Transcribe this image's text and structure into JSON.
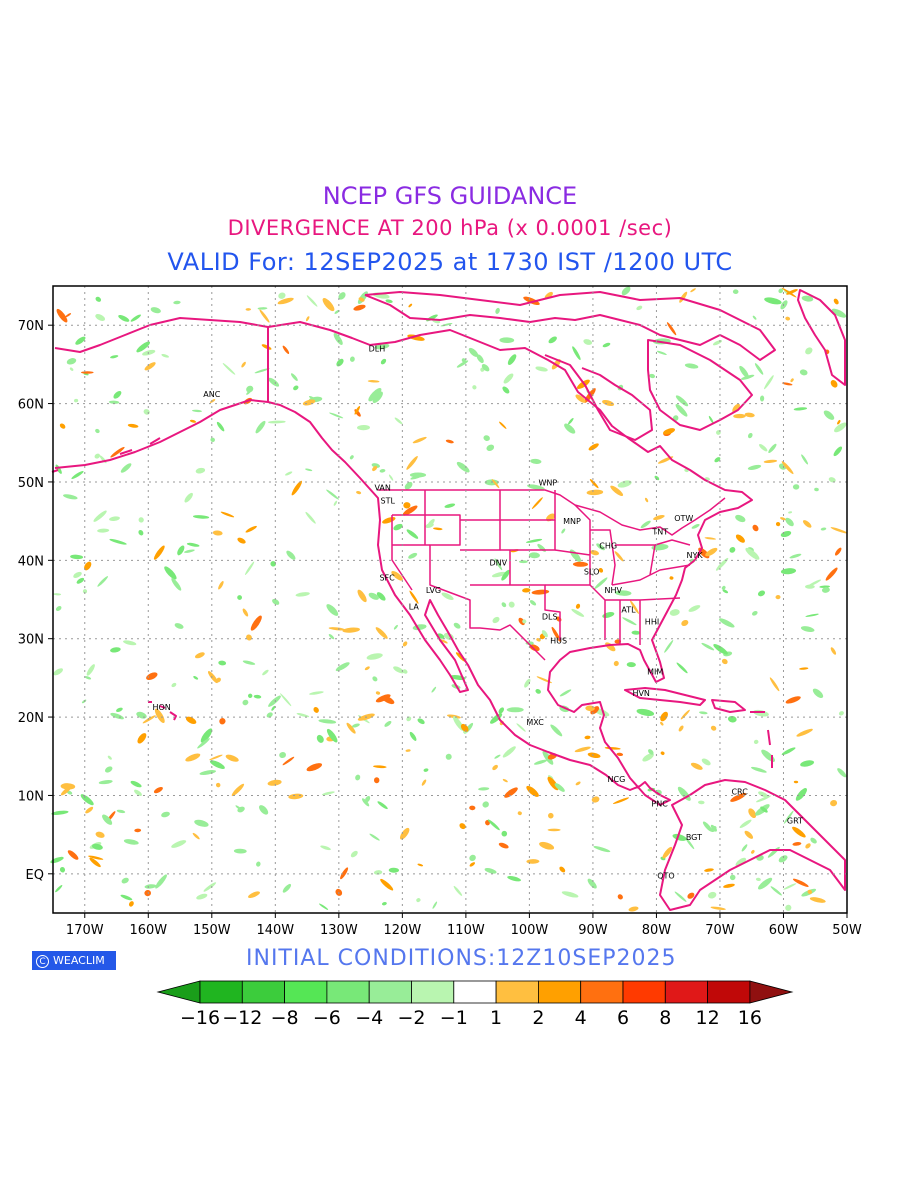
{
  "header": {
    "title": "NCEP GFS GUIDANCE",
    "subtitle": "DIVERGENCE AT 200 hPa (x 0.0001 /sec)",
    "valid": "VALID For: 12SEP2025 at 1730 IST /1200 UTC"
  },
  "initial_conditions": "INITIAL CONDITIONS:12Z10SEP2025",
  "logo_text": "WEACLIM",
  "map": {
    "extent": {
      "lon_min": -175,
      "lon_max": -50,
      "lat_min": -5,
      "lat_max": 75
    },
    "lat_labels": [
      {
        "lat": 70,
        "label": "70N"
      },
      {
        "lat": 60,
        "label": "60N"
      },
      {
        "lat": 50,
        "label": "50N"
      },
      {
        "lat": 40,
        "label": "40N"
      },
      {
        "lat": 30,
        "label": "30N"
      },
      {
        "lat": 20,
        "label": "20N"
      },
      {
        "lat": 10,
        "label": "10N"
      },
      {
        "lat": 0,
        "label": "EQ"
      }
    ],
    "lon_labels": [
      {
        "lon": -170,
        "label": "170W"
      },
      {
        "lon": -160,
        "label": "160W"
      },
      {
        "lon": -150,
        "label": "150W"
      },
      {
        "lon": -140,
        "label": "140W"
      },
      {
        "lon": -130,
        "label": "130W"
      },
      {
        "lon": -120,
        "label": "120W"
      },
      {
        "lon": -110,
        "label": "110W"
      },
      {
        "lon": -100,
        "label": "100W"
      },
      {
        "lon": -90,
        "label": "90W"
      },
      {
        "lon": -80,
        "label": "80W"
      },
      {
        "lon": -70,
        "label": "70W"
      },
      {
        "lon": -60,
        "label": "60W"
      },
      {
        "lon": -50,
        "label": "50W"
      }
    ],
    "grid": "dotted",
    "coastline_color": "#e8177f",
    "cities": [
      {
        "code": "DLH",
        "lon": -124,
        "lat": 67
      },
      {
        "code": "ANC",
        "lon": -150,
        "lat": 61.2
      },
      {
        "code": "VAN",
        "lon": -123.1,
        "lat": 49.3
      },
      {
        "code": "STL",
        "lon": -122.3,
        "lat": 47.6
      },
      {
        "code": "WNP",
        "lon": -97.1,
        "lat": 49.9
      },
      {
        "code": "MNP",
        "lon": -93.3,
        "lat": 45
      },
      {
        "code": "TNT",
        "lon": -79.4,
        "lat": 43.7
      },
      {
        "code": "OTW",
        "lon": -75.7,
        "lat": 45.4
      },
      {
        "code": "CHG",
        "lon": -87.6,
        "lat": 41.9
      },
      {
        "code": "NYK",
        "lon": -74,
        "lat": 40.7
      },
      {
        "code": "DNV",
        "lon": -104.9,
        "lat": 39.7
      },
      {
        "code": "SFC",
        "lon": -122.4,
        "lat": 37.8
      },
      {
        "code": "SLO",
        "lon": -90.2,
        "lat": 38.6
      },
      {
        "code": "LVG",
        "lon": -115.1,
        "lat": 36.2
      },
      {
        "code": "NHV",
        "lon": -86.8,
        "lat": 36.2
      },
      {
        "code": "LA",
        "lon": -118.2,
        "lat": 34.1
      },
      {
        "code": "ATL",
        "lon": -84.4,
        "lat": 33.7
      },
      {
        "code": "DLS",
        "lon": -96.8,
        "lat": 32.8
      },
      {
        "code": "HHI",
        "lon": -80.7,
        "lat": 32.2
      },
      {
        "code": "HUS",
        "lon": -95.4,
        "lat": 29.8
      },
      {
        "code": "MIM",
        "lon": -80.2,
        "lat": 25.8
      },
      {
        "code": "HON",
        "lon": -157.9,
        "lat": 21.3
      },
      {
        "code": "HVN",
        "lon": -82.4,
        "lat": 23.1
      },
      {
        "code": "MXC",
        "lon": -99.1,
        "lat": 19.4
      },
      {
        "code": "NCG",
        "lon": -86.3,
        "lat": 12.1
      },
      {
        "code": "CRC",
        "lon": -66.9,
        "lat": 10.5
      },
      {
        "code": "PNC",
        "lon": -79.5,
        "lat": 9
      },
      {
        "code": "GRT",
        "lon": -58.2,
        "lat": 6.8
      },
      {
        "code": "BGT",
        "lon": -74.1,
        "lat": 4.7
      },
      {
        "code": "QTO",
        "lon": -78.5,
        "lat": -0.2
      }
    ]
  },
  "colorbar": {
    "labels": [
      "−16",
      "−12",
      "−8",
      "−6",
      "−4",
      "−2",
      "−1",
      "1",
      "2",
      "4",
      "6",
      "8",
      "12",
      "16"
    ],
    "colors": [
      "#1a9e1a",
      "#20b520",
      "#3ccc3c",
      "#55e655",
      "#78e878",
      "#98ed98",
      "#b9f5b0",
      "#ffffff",
      "#ffbf40",
      "#ffa000",
      "#ff7010",
      "#ff3a00",
      "#e01818",
      "#c00808",
      "#901010"
    ]
  }
}
